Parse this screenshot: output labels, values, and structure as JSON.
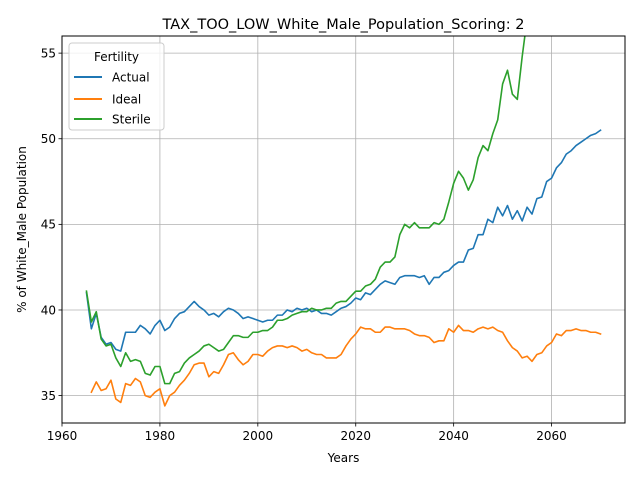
{
  "chart_data": {
    "type": "line",
    "title": "TAX_TOO_LOW_White_Male_Population_Scoring: 2",
    "xlabel": "Years",
    "ylabel": "% of White_Male Population",
    "xlim": [
      1960,
      2075
    ],
    "ylim": [
      33.4,
      56.0
    ],
    "xticks": [
      1960,
      1980,
      2000,
      2020,
      2040,
      2060
    ],
    "yticks": [
      35,
      40,
      45,
      50,
      55
    ],
    "grid": true,
    "legend": {
      "title": "Fertility",
      "placement": "upper-left"
    },
    "series": [
      {
        "name": "Actual",
        "color": "#1f77b4",
        "x": [
          1965,
          1966,
          1967,
          1968,
          1969,
          1970,
          1971,
          1972,
          1973,
          1974,
          1975,
          1976,
          1977,
          1978,
          1979,
          1980,
          1981,
          1982,
          1983,
          1984,
          1985,
          1986,
          1987,
          1988,
          1989,
          1990,
          1991,
          1992,
          1993,
          1994,
          1995,
          1996,
          1997,
          1998,
          1999,
          2000,
          2001,
          2002,
          2003,
          2004,
          2005,
          2006,
          2007,
          2008,
          2009,
          2010,
          2011,
          2012,
          2013,
          2014,
          2015,
          2016,
          2017,
          2018,
          2019,
          2020,
          2021,
          2022,
          2023,
          2024,
          2025,
          2026,
          2027,
          2028,
          2029,
          2030,
          2031,
          2032,
          2033,
          2034,
          2035,
          2036,
          2037,
          2038,
          2039,
          2040,
          2041,
          2042,
          2043,
          2044,
          2045,
          2046,
          2047,
          2048,
          2049,
          2050,
          2051,
          2052,
          2053,
          2054,
          2055,
          2056,
          2057,
          2058,
          2059,
          2060,
          2061,
          2062,
          2063,
          2064,
          2065,
          2066,
          2067,
          2068,
          2069,
          2070
        ],
        "values": [
          41.0,
          38.9,
          39.8,
          38.4,
          38.0,
          38.1,
          37.7,
          37.6,
          38.7,
          38.7,
          38.7,
          39.1,
          38.9,
          38.6,
          39.1,
          39.4,
          38.8,
          39.0,
          39.5,
          39.8,
          39.9,
          40.2,
          40.5,
          40.2,
          40.0,
          39.7,
          39.8,
          39.6,
          39.9,
          40.1,
          40.0,
          39.8,
          39.5,
          39.6,
          39.5,
          39.4,
          39.3,
          39.4,
          39.4,
          39.7,
          39.7,
          40.0,
          39.9,
          40.1,
          40.0,
          40.1,
          39.9,
          40.0,
          39.8,
          39.8,
          39.7,
          39.9,
          40.1,
          40.2,
          40.4,
          40.7,
          40.6,
          41.0,
          40.9,
          41.2,
          41.5,
          41.7,
          41.6,
          41.5,
          41.9,
          42.0,
          42.0,
          42.0,
          41.9,
          42.0,
          41.5,
          41.9,
          41.9,
          42.2,
          42.3,
          42.6,
          42.8,
          42.8,
          43.5,
          43.6,
          44.4,
          44.4,
          45.3,
          45.1,
          46.0,
          45.5,
          46.1,
          45.3,
          45.8,
          45.2,
          46.0,
          45.6,
          46.5,
          46.6,
          47.5,
          47.7,
          48.3,
          48.6,
          49.1,
          49.3,
          49.6,
          49.8,
          50.0,
          50.2,
          50.3,
          50.5
        ]
      },
      {
        "name": "Ideal",
        "color": "#ff7f0e",
        "x": [
          1966,
          1967,
          1968,
          1969,
          1970,
          1971,
          1972,
          1973,
          1974,
          1975,
          1976,
          1977,
          1978,
          1979,
          1980,
          1981,
          1982,
          1983,
          1984,
          1985,
          1986,
          1987,
          1988,
          1989,
          1990,
          1991,
          1992,
          1993,
          1994,
          1995,
          1996,
          1997,
          1998,
          1999,
          2000,
          2001,
          2002,
          2003,
          2004,
          2005,
          2006,
          2007,
          2008,
          2009,
          2010,
          2011,
          2012,
          2013,
          2014,
          2015,
          2016,
          2017,
          2018,
          2019,
          2020,
          2021,
          2022,
          2023,
          2024,
          2025,
          2026,
          2027,
          2028,
          2029,
          2030,
          2031,
          2032,
          2033,
          2034,
          2035,
          2036,
          2037,
          2038,
          2039,
          2040,
          2041,
          2042,
          2043,
          2044,
          2045,
          2046,
          2047,
          2048,
          2049,
          2050,
          2051,
          2052,
          2053,
          2054,
          2055,
          2056,
          2057,
          2058,
          2059,
          2060,
          2061,
          2062,
          2063,
          2064,
          2065,
          2066,
          2067,
          2068,
          2069,
          2070
        ],
        "values": [
          35.2,
          35.8,
          35.3,
          35.4,
          35.9,
          34.8,
          34.6,
          35.7,
          35.6,
          36.0,
          35.8,
          35.0,
          34.9,
          35.2,
          35.4,
          34.4,
          35.0,
          35.2,
          35.6,
          35.9,
          36.3,
          36.8,
          36.9,
          36.9,
          36.1,
          36.4,
          36.3,
          36.8,
          37.4,
          37.5,
          37.1,
          36.8,
          37.0,
          37.4,
          37.4,
          37.3,
          37.6,
          37.8,
          37.9,
          37.9,
          37.8,
          37.9,
          37.8,
          37.6,
          37.7,
          37.5,
          37.4,
          37.4,
          37.2,
          37.2,
          37.2,
          37.4,
          37.9,
          38.3,
          38.6,
          39.0,
          38.9,
          38.9,
          38.7,
          38.7,
          39.0,
          39.0,
          38.9,
          38.9,
          38.9,
          38.8,
          38.6,
          38.5,
          38.5,
          38.4,
          38.1,
          38.2,
          38.2,
          38.9,
          38.7,
          39.1,
          38.8,
          38.8,
          38.7,
          38.9,
          39.0,
          38.9,
          39.0,
          38.8,
          38.7,
          38.2,
          37.8,
          37.6,
          37.2,
          37.3,
          37.0,
          37.4,
          37.5,
          37.9,
          38.1,
          38.6,
          38.5,
          38.8,
          38.8,
          38.9,
          38.8,
          38.8,
          38.7,
          38.7,
          38.6
        ]
      },
      {
        "name": "Sterile",
        "color": "#2ca02c",
        "x": [
          1965,
          1966,
          1967,
          1968,
          1969,
          1970,
          1971,
          1972,
          1973,
          1974,
          1975,
          1976,
          1977,
          1978,
          1979,
          1980,
          1981,
          1982,
          1983,
          1984,
          1985,
          1986,
          1987,
          1988,
          1989,
          1990,
          1991,
          1992,
          1993,
          1994,
          1995,
          1996,
          1997,
          1998,
          1999,
          2000,
          2001,
          2002,
          2003,
          2004,
          2005,
          2006,
          2007,
          2008,
          2009,
          2010,
          2011,
          2012,
          2013,
          2014,
          2015,
          2016,
          2017,
          2018,
          2019,
          2020,
          2021,
          2022,
          2023,
          2024,
          2025,
          2026,
          2027,
          2028,
          2029,
          2030,
          2031,
          2032,
          2033,
          2034,
          2035,
          2036,
          2037,
          2038,
          2039,
          2040,
          2041,
          2042,
          2043,
          2044,
          2045,
          2046,
          2047,
          2048,
          2049,
          2050,
          2051,
          2052,
          2053,
          2054,
          2055
        ],
        "values": [
          41.1,
          39.3,
          39.9,
          38.3,
          37.9,
          38.0,
          37.2,
          36.7,
          37.5,
          37.0,
          37.1,
          37.0,
          36.3,
          36.2,
          36.7,
          36.7,
          35.7,
          35.7,
          36.3,
          36.4,
          36.9,
          37.2,
          37.4,
          37.6,
          37.9,
          38.0,
          37.8,
          37.6,
          37.7,
          38.1,
          38.5,
          38.5,
          38.4,
          38.4,
          38.7,
          38.7,
          38.8,
          38.8,
          39.0,
          39.4,
          39.4,
          39.5,
          39.7,
          39.8,
          39.9,
          39.9,
          40.1,
          40.0,
          40.0,
          40.1,
          40.1,
          40.4,
          40.5,
          40.5,
          40.8,
          41.1,
          41.1,
          41.4,
          41.5,
          41.8,
          42.5,
          42.8,
          42.8,
          43.1,
          44.4,
          45.0,
          44.8,
          45.1,
          44.8,
          44.8,
          44.8,
          45.1,
          45.0,
          45.3,
          46.3,
          47.4,
          48.1,
          47.7,
          47.0,
          47.6,
          48.9,
          49.6,
          49.3,
          50.3,
          51.1,
          53.2,
          54.0,
          52.6,
          52.3,
          54.8,
          57.0
        ]
      }
    ]
  }
}
